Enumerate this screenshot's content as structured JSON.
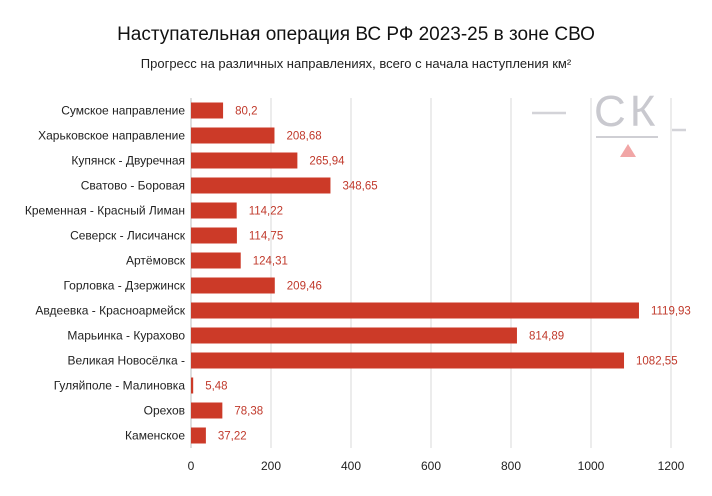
{
  "chart_data": {
    "type": "bar",
    "orientation": "horizontal",
    "title": "Наступательная операция ВС РФ 2023-25 в зоне СВО",
    "subtitle": "Прогресс на различных направлениях, всего с начала наступления км²",
    "categories": [
      "Сумское направление",
      "Харьковское направление",
      "Купянск - Двуречная",
      "Сватово - Боровая",
      "Кременная - Красный Лиман",
      "Северск - Лисичанск",
      "Артёмовск",
      "Горловка - Дзержинск",
      "Авдеевка - Красноармейск",
      "Марьинка - Курахово",
      "Великая Новосёлка -",
      "Гуляйполе - Малиновка",
      "Орехов",
      "Каменское"
    ],
    "values": [
      80.2,
      208.68,
      265.94,
      348.65,
      114.22,
      114.75,
      124.31,
      209.46,
      1119.93,
      814.89,
      1082.55,
      5.48,
      78.38,
      37.22
    ],
    "value_labels": [
      "80,2",
      "208,68",
      "265,94",
      "348,65",
      "114,22",
      "114,75",
      "124,31",
      "209,46",
      "1119,93",
      "814,89",
      "1082,55",
      "5,48",
      "78,38",
      "37,22"
    ],
    "xlim": [
      0,
      1200
    ],
    "xticks": [
      0,
      200,
      400,
      600,
      800,
      1000,
      1200
    ],
    "grid": true,
    "bar_color": "#cc3a28",
    "label_color": "#c0392b",
    "xlabel": "",
    "ylabel": ""
  },
  "watermark": {
    "text": "СК"
  }
}
